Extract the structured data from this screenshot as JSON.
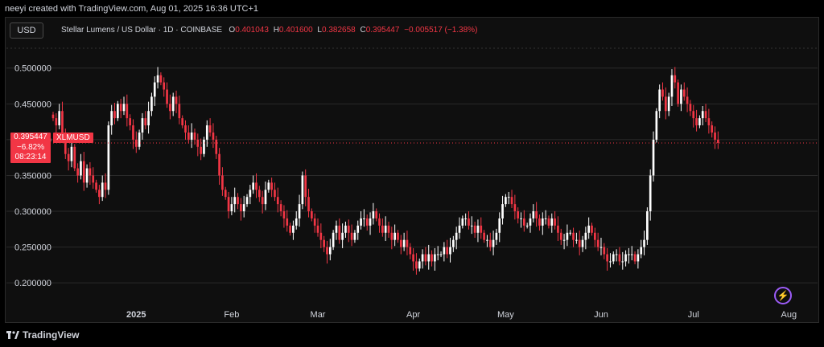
{
  "header": {
    "text": "neeyi created with TradingView.com, Aug 01, 2025 16:36 UTC+1"
  },
  "toolbar": {
    "currency": "USD"
  },
  "legend": {
    "symbol": "Stellar Lumens / US Dollar · 1D · COINBASE",
    "o_label": "O",
    "o_value": "0.401043",
    "h_label": "H",
    "h_value": "0.401600",
    "l_label": "L",
    "l_value": "0.382658",
    "c_label": "C",
    "c_value": "0.395447",
    "change": "−0.005517 (−1.38%)"
  },
  "price_tag": {
    "price": "0.395447",
    "change": "−6.82%",
    "countdown": "08:23:14",
    "symbol": "XLMUSD"
  },
  "footer": {
    "brand": "TradingView"
  },
  "colors": {
    "up": "#ffffff",
    "down": "#f23645",
    "grid": "#2a2a2a",
    "background": "#0f0f0f"
  },
  "icons": {
    "bolt": "lightning-icon",
    "logo": "tradingview-logo-icon"
  },
  "chart_data": {
    "type": "candlestick",
    "symbol": "XLMUSD",
    "ylim": [
      0.18,
      0.53
    ],
    "y_ticks": [
      0.5,
      0.45,
      0.4,
      0.35,
      0.3,
      0.25,
      0.2
    ],
    "y_tick_labels": [
      "0.500000",
      "0.450000",
      "0.400000",
      "0.350000",
      "0.300000",
      "0.250000",
      "0.200000"
    ],
    "x_ticks": [
      {
        "label": "2025",
        "date": "2025-01-01"
      },
      {
        "label": "Feb",
        "date": "2025-02-01"
      },
      {
        "label": "Mar",
        "date": "2025-03-01"
      },
      {
        "label": "Apr",
        "date": "2025-04-01"
      },
      {
        "label": "May",
        "date": "2025-05-01"
      },
      {
        "label": "Jun",
        "date": "2025-06-01"
      },
      {
        "label": "Jul",
        "date": "2025-07-01"
      },
      {
        "label": "Aug",
        "date": "2025-08-01"
      }
    ],
    "start_date": "2024-12-05",
    "last_price": 0.395447,
    "closes": [
      0.43,
      0.42,
      0.44,
      0.41,
      0.38,
      0.37,
      0.39,
      0.36,
      0.35,
      0.37,
      0.34,
      0.36,
      0.35,
      0.34,
      0.33,
      0.32,
      0.34,
      0.33,
      0.42,
      0.44,
      0.43,
      0.45,
      0.44,
      0.45,
      0.43,
      0.42,
      0.4,
      0.39,
      0.41,
      0.43,
      0.42,
      0.44,
      0.46,
      0.48,
      0.49,
      0.48,
      0.47,
      0.45,
      0.44,
      0.46,
      0.45,
      0.43,
      0.42,
      0.41,
      0.4,
      0.41,
      0.4,
      0.39,
      0.38,
      0.4,
      0.42,
      0.41,
      0.4,
      0.38,
      0.35,
      0.33,
      0.32,
      0.3,
      0.31,
      0.32,
      0.31,
      0.3,
      0.31,
      0.32,
      0.33,
      0.34,
      0.33,
      0.32,
      0.31,
      0.33,
      0.34,
      0.33,
      0.32,
      0.31,
      0.3,
      0.29,
      0.28,
      0.27,
      0.28,
      0.29,
      0.31,
      0.35,
      0.32,
      0.3,
      0.29,
      0.28,
      0.27,
      0.26,
      0.25,
      0.24,
      0.25,
      0.27,
      0.28,
      0.26,
      0.27,
      0.28,
      0.27,
      0.26,
      0.27,
      0.28,
      0.29,
      0.29,
      0.28,
      0.29,
      0.3,
      0.29,
      0.28,
      0.27,
      0.28,
      0.27,
      0.26,
      0.27,
      0.26,
      0.25,
      0.26,
      0.25,
      0.24,
      0.23,
      0.22,
      0.23,
      0.24,
      0.23,
      0.24,
      0.23,
      0.24,
      0.24,
      0.24,
      0.25,
      0.24,
      0.25,
      0.26,
      0.27,
      0.28,
      0.29,
      0.29,
      0.28,
      0.28,
      0.27,
      0.28,
      0.27,
      0.26,
      0.26,
      0.25,
      0.26,
      0.27,
      0.29,
      0.31,
      0.32,
      0.32,
      0.31,
      0.3,
      0.29,
      0.29,
      0.28,
      0.28,
      0.29,
      0.3,
      0.29,
      0.28,
      0.29,
      0.29,
      0.28,
      0.29,
      0.28,
      0.27,
      0.26,
      0.26,
      0.27,
      0.27,
      0.26,
      0.26,
      0.25,
      0.26,
      0.27,
      0.28,
      0.27,
      0.26,
      0.25,
      0.25,
      0.24,
      0.23,
      0.23,
      0.24,
      0.24,
      0.23,
      0.23,
      0.24,
      0.24,
      0.24,
      0.23,
      0.24,
      0.25,
      0.26,
      0.3,
      0.35,
      0.4,
      0.44,
      0.47,
      0.46,
      0.44,
      0.46,
      0.49,
      0.48,
      0.45,
      0.47,
      0.46,
      0.45,
      0.44,
      0.43,
      0.42,
      0.43,
      0.44,
      0.43,
      0.42,
      0.41,
      0.4,
      0.395447
    ]
  }
}
